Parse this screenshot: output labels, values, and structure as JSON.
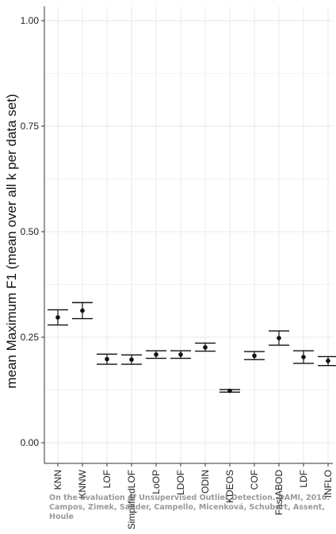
{
  "chart_data": {
    "type": "scatter",
    "variant": "point-with-error-bars",
    "ylabel": "mean Maximum F1 (mean over all k per data set)",
    "xlabel": "",
    "ylim": [
      0,
      1.05
    ],
    "y_ticks": [
      0.0,
      0.25,
      0.5,
      0.75,
      1.0
    ],
    "y_tick_labels": [
      "0.00",
      "0.25",
      "0.50",
      "0.75",
      "1.00"
    ],
    "grid": true,
    "categories": [
      "KNN",
      "KNNW",
      "LOF",
      "SimplifiedLOF",
      "LoOP",
      "LDOF",
      "ODIN",
      "KDEOS",
      "COF",
      "FastABOD",
      "LDF",
      "INFLO"
    ],
    "values": [
      0.297,
      0.313,
      0.198,
      0.197,
      0.209,
      0.209,
      0.226,
      0.123,
      0.206,
      0.248,
      0.203,
      0.194
    ],
    "error_low": [
      0.279,
      0.294,
      0.186,
      0.186,
      0.2,
      0.2,
      0.217,
      0.12,
      0.197,
      0.231,
      0.188,
      0.183
    ],
    "error_high": [
      0.315,
      0.332,
      0.21,
      0.208,
      0.218,
      0.218,
      0.236,
      0.126,
      0.216,
      0.265,
      0.218,
      0.204
    ],
    "colors": {
      "points": "#111111",
      "axis": "#333333",
      "grid": "#e8e8e8",
      "grid_minor": "#f3f3f3"
    }
  },
  "watermark": {
    "line1": "On the Evaluation of Unsupervised Outlier Detection. DAMI, 2016.",
    "line2": "Campos, Zimek, Sander, Campello, Micenková, Schubert, Assent, Houle"
  }
}
